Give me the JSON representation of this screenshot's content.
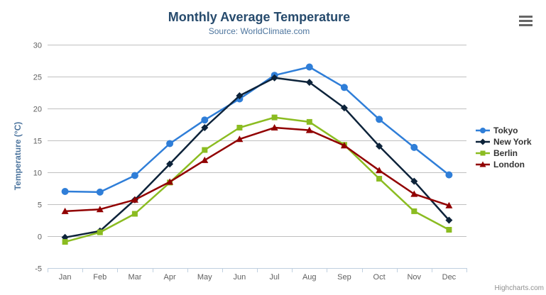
{
  "chart": {
    "title": "Monthly Average Temperature",
    "subtitle": "Source: WorldClimate.com",
    "credit": "Highcharts.com"
  },
  "chart_data": {
    "type": "line",
    "title": "Monthly Average Temperature",
    "subtitle": "Source: WorldClimate.com",
    "xlabel": "",
    "ylabel": "Temperature (°C)",
    "ylim": [
      -5,
      30
    ],
    "y_ticks": [
      -5,
      0,
      5,
      10,
      15,
      20,
      25,
      30
    ],
    "grid": true,
    "legend_position": "right",
    "categories": [
      "Jan",
      "Feb",
      "Mar",
      "Apr",
      "May",
      "Jun",
      "Jul",
      "Aug",
      "Sep",
      "Oct",
      "Nov",
      "Dec"
    ],
    "series": [
      {
        "name": "Tokyo",
        "color": "#2f7ed8",
        "marker": "circle",
        "values": [
          7.0,
          6.9,
          9.5,
          14.5,
          18.2,
          21.5,
          25.2,
          26.5,
          23.3,
          18.3,
          13.9,
          9.6
        ]
      },
      {
        "name": "New York",
        "color": "#0d233a",
        "marker": "diamond",
        "values": [
          -0.2,
          0.8,
          5.7,
          11.3,
          17.0,
          22.0,
          24.8,
          24.1,
          20.1,
          14.1,
          8.6,
          2.5
        ]
      },
      {
        "name": "Berlin",
        "color": "#8bbc21",
        "marker": "square",
        "values": [
          -0.9,
          0.6,
          3.5,
          8.4,
          13.5,
          17.0,
          18.6,
          17.9,
          14.3,
          9.0,
          3.9,
          1.0
        ]
      },
      {
        "name": "London",
        "color": "#910000",
        "marker": "triangle",
        "values": [
          3.9,
          4.2,
          5.7,
          8.5,
          11.9,
          15.2,
          17.0,
          16.6,
          14.2,
          10.3,
          6.6,
          4.8
        ]
      }
    ]
  },
  "colors": {
    "title": "#274b6d",
    "subtitle": "#4d759e",
    "axis_title": "#4d759e",
    "tick_label": "#606060",
    "grid_line": "#c0c0c0",
    "axis_line": "#c0d0e0",
    "legend_text": "#333333",
    "credit": "#909090",
    "menu_icon": "#666666"
  }
}
